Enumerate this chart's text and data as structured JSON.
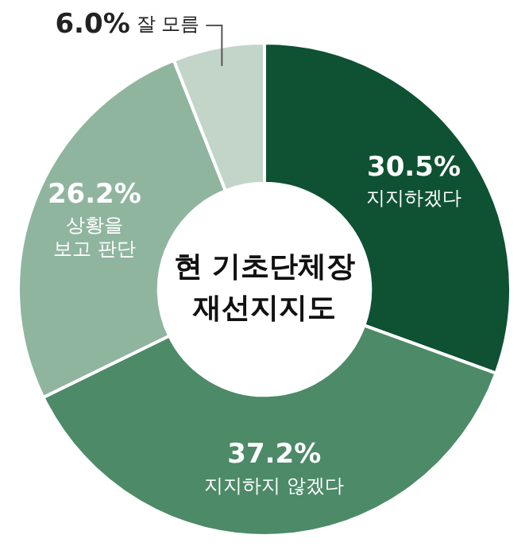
{
  "chart_data": {
    "type": "donut",
    "title": "현 기초단체장\n재선지지도",
    "categories": [
      "지지하겠다",
      "지지하지 않겠다",
      "상황을\n보고 판단",
      "잘 모름"
    ],
    "values": [
      30.5,
      37.2,
      26.2,
      6.0
    ],
    "colors": [
      "#0e5233",
      "#4c8a68",
      "#8fb59f",
      "#c3d5c9"
    ],
    "value_labels": [
      "30.5%",
      "37.2%",
      "26.2%",
      "6.0%"
    ],
    "legend": false
  }
}
